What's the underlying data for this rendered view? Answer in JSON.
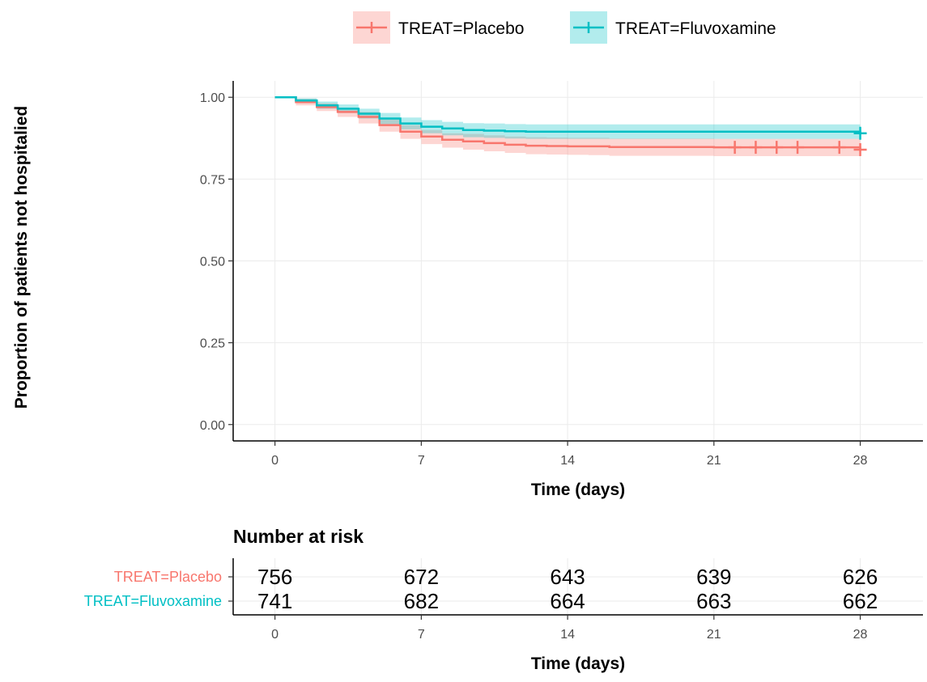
{
  "chart_data": [
    {
      "type": "line",
      "subtype": "kaplan-meier",
      "xlabel": "Time (days)",
      "ylabel": "Proportion of patients not hospitalied",
      "xlim": [
        -2,
        31
      ],
      "ylim": [
        -0.05,
        1.05
      ],
      "x_ticks": [
        0,
        7,
        14,
        21,
        28
      ],
      "y_ticks": [
        0.0,
        0.25,
        0.5,
        0.75,
        1.0
      ],
      "y_tick_labels": [
        "0.00",
        "0.25",
        "0.50",
        "0.75",
        "1.00"
      ],
      "grid": true,
      "legend_position": "top",
      "legend": [
        "TREAT=Placebo",
        "TREAT=Fluvoxamine"
      ],
      "series": [
        {
          "name": "TREAT=Placebo",
          "color": "#F8766D",
          "x": [
            0,
            1,
            2,
            3,
            4,
            5,
            6,
            7,
            8,
            9,
            10,
            11,
            12,
            13,
            14,
            15,
            16,
            21,
            28
          ],
          "y": [
            1.0,
            0.985,
            0.97,
            0.955,
            0.94,
            0.915,
            0.895,
            0.88,
            0.87,
            0.865,
            0.86,
            0.855,
            0.852,
            0.851,
            0.85,
            0.85,
            0.848,
            0.847,
            0.84
          ],
          "lower": [
            1.0,
            0.975,
            0.958,
            0.94,
            0.92,
            0.895,
            0.873,
            0.857,
            0.846,
            0.84,
            0.835,
            0.83,
            0.826,
            0.825,
            0.824,
            0.823,
            0.821,
            0.82,
            0.81
          ],
          "upper": [
            1.0,
            0.995,
            0.982,
            0.968,
            0.955,
            0.935,
            0.915,
            0.9,
            0.89,
            0.888,
            0.884,
            0.88,
            0.878,
            0.877,
            0.876,
            0.876,
            0.874,
            0.873,
            0.868
          ],
          "censor_x": [
            22,
            23,
            24,
            25,
            27,
            28
          ]
        },
        {
          "name": "TREAT=Fluvoxamine",
          "color": "#00BFC4",
          "x": [
            0,
            1,
            2,
            3,
            4,
            5,
            6,
            7,
            8,
            9,
            10,
            11,
            12,
            28
          ],
          "y": [
            1.0,
            0.99,
            0.975,
            0.965,
            0.95,
            0.935,
            0.92,
            0.91,
            0.905,
            0.9,
            0.898,
            0.896,
            0.895,
            0.89
          ],
          "lower": [
            1.0,
            0.982,
            0.965,
            0.952,
            0.935,
            0.918,
            0.902,
            0.89,
            0.884,
            0.878,
            0.876,
            0.874,
            0.873,
            0.868
          ],
          "upper": [
            1.0,
            0.997,
            0.987,
            0.978,
            0.965,
            0.952,
            0.938,
            0.93,
            0.925,
            0.921,
            0.92,
            0.918,
            0.917,
            0.913
          ],
          "censor_x": [
            28
          ]
        }
      ]
    },
    {
      "type": "table",
      "title": "Number at risk",
      "xlabel": "Time (days)",
      "x_ticks": [
        0,
        7,
        14,
        21,
        28
      ],
      "rows": [
        {
          "label": "TREAT=Placebo",
          "color": "#F8766D",
          "values": [
            756,
            672,
            643,
            639,
            626
          ]
        },
        {
          "label": "TREAT=Fluvoxamine",
          "color": "#00BFC4",
          "values": [
            741,
            682,
            664,
            663,
            662
          ]
        }
      ]
    }
  ]
}
